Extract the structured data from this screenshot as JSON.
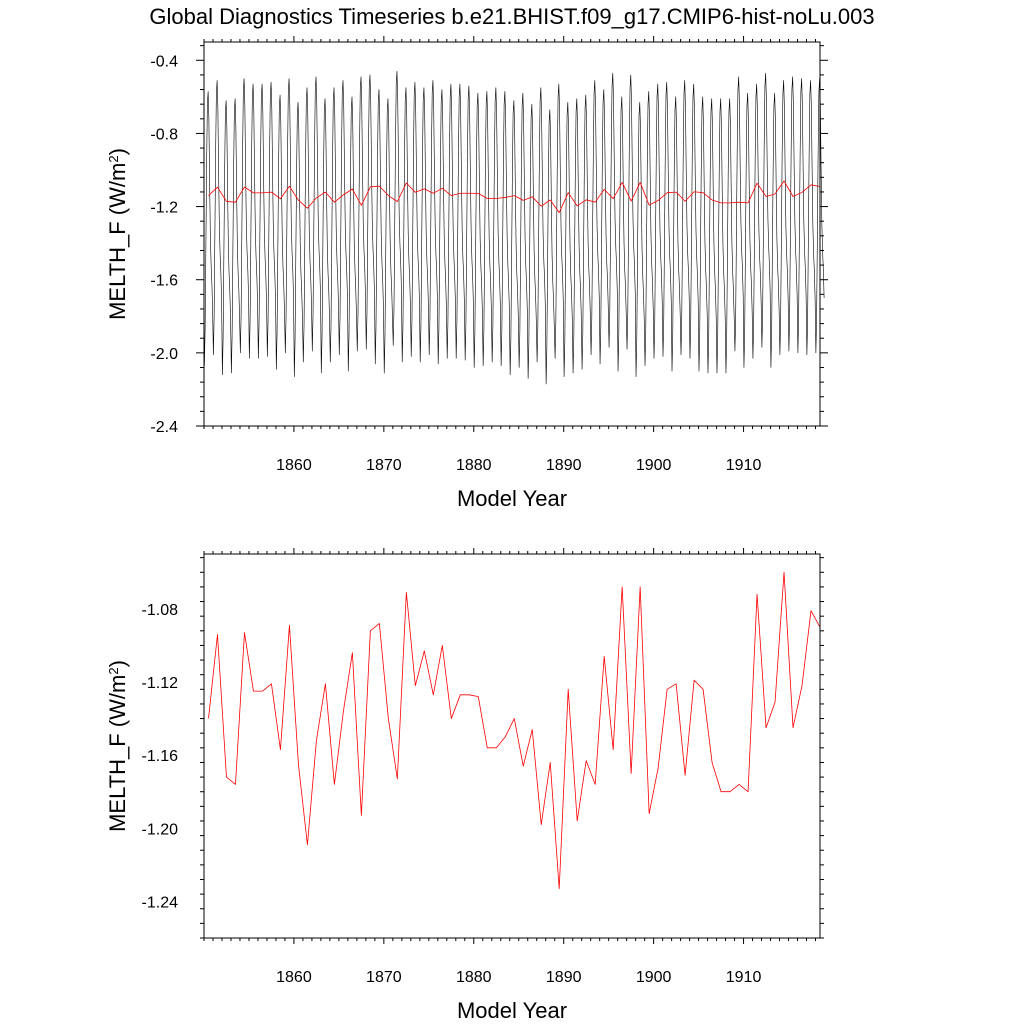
{
  "figure": {
    "title": "Global Diagnostics Timeseries b.e21.BHIST.f09_g17.CMIP6-hist-noLu.003"
  },
  "chart_data": [
    {
      "type": "line",
      "xlabel": "Model Year",
      "ylabel_main": "MELTH_F (W/m",
      "ylabel_sup": "2",
      "ylabel_end": ")",
      "xlim": [
        1850,
        1918.5
      ],
      "ylim": [
        -2.4,
        -0.3
      ],
      "xticks": [
        1860,
        1870,
        1880,
        1890,
        1900,
        1910
      ],
      "yticks": [
        -0.4,
        -0.8,
        -1.2,
        -1.6,
        -2.0,
        -2.4
      ],
      "ytick_labels": [
        "-0.4",
        "-0.8",
        "-1.2",
        "-1.6",
        "-2.0",
        "-2.4"
      ],
      "grid": false,
      "series": [
        {
          "color": "#000000",
          "monthly_climatology": [
            -2.05,
            -1.85,
            -1.4,
            -0.95,
            -0.62,
            -0.55,
            -0.7,
            -1.05,
            -1.35,
            -1.5,
            -1.6,
            -1.75
          ],
          "annual_perturbation": [
            -0.02,
            0.04,
            -0.07,
            -0.06,
            0.05,
            0.02,
            0.02,
            0.03,
            -0.04,
            0.05,
            -0.08,
            0.0,
            0.06,
            -0.06,
            0.0,
            0.04,
            -0.05,
            0.06,
            0.07,
            -0.01,
            -0.06,
            0.09,
            0.0,
            0.03,
            0.0,
            0.04,
            -0.01,
            0.02,
            0.02,
            0.01,
            -0.03,
            -0.02,
            0.0,
            -0.02,
            -0.07,
            -0.03,
            -0.09,
            0.0,
            -0.12,
            0.02,
            -0.08,
            -0.06,
            -0.04,
            0.04,
            -0.01,
            0.08,
            -0.05,
            0.07,
            -0.08,
            -0.02,
            0.02,
            0.03,
            -0.05,
            0.04,
            0.02,
            -0.05,
            -0.06,
            -0.06,
            -0.06,
            0.06,
            -0.03,
            0.02,
            0.08,
            -0.03,
            0.04,
            0.06,
            0.05,
            0.04,
            0.05
          ]
        },
        {
          "color": "#ff0000",
          "x": [
            1850.5,
            1851.5,
            1852.5,
            1853.5,
            1854.5,
            1855.5,
            1856.5,
            1857.5,
            1858.5,
            1859.5,
            1860.5,
            1861.5,
            1862.5,
            1863.5,
            1864.5,
            1865.5,
            1866.5,
            1867.5,
            1868.5,
            1869.5,
            1870.5,
            1871.5,
            1872.5,
            1873.5,
            1874.5,
            1875.5,
            1876.5,
            1877.5,
            1878.5,
            1879.5,
            1880.5,
            1881.5,
            1882.5,
            1883.5,
            1884.5,
            1885.5,
            1886.5,
            1887.5,
            1888.5,
            1889.5,
            1890.5,
            1891.5,
            1892.5,
            1893.5,
            1894.5,
            1895.5,
            1896.5,
            1897.5,
            1898.5,
            1899.5,
            1900.5,
            1901.5,
            1902.5,
            1903.5,
            1904.5,
            1905.5,
            1906.5,
            1907.5,
            1908.5,
            1909.5,
            1910.5,
            1911.5,
            1912.5,
            1913.5,
            1914.5,
            1915.5,
            1916.5,
            1917.5,
            1918.5
          ],
          "values": [
            -1.14,
            -1.094,
            -1.172,
            -1.176,
            -1.093,
            -1.125,
            -1.125,
            -1.121,
            -1.157,
            -1.089,
            -1.165,
            -1.209,
            -1.152,
            -1.121,
            -1.176,
            -1.136,
            -1.104,
            -1.193,
            -1.092,
            -1.088,
            -1.14,
            -1.173,
            -1.071,
            -1.122,
            -1.103,
            -1.127,
            -1.1,
            -1.14,
            -1.127,
            -1.127,
            -1.128,
            -1.156,
            -1.156,
            -1.15,
            -1.14,
            -1.166,
            -1.146,
            -1.198,
            -1.164,
            -1.233,
            -1.124,
            -1.196,
            -1.163,
            -1.176,
            -1.106,
            -1.157,
            -1.068,
            -1.17,
            -1.068,
            -1.192,
            -1.167,
            -1.124,
            -1.121,
            -1.171,
            -1.119,
            -1.124,
            -1.164,
            -1.18,
            -1.18,
            -1.176,
            -1.18,
            -1.072,
            -1.145,
            -1.131,
            -1.06,
            -1.145,
            -1.122,
            -1.081,
            -1.09
          ]
        }
      ]
    },
    {
      "type": "line",
      "xlabel": "Model Year",
      "ylabel_main": "MELTH_F (W/m",
      "ylabel_sup": "2",
      "ylabel_end": ")",
      "xlim": [
        1850,
        1918.5
      ],
      "ylim": [
        -1.26,
        -1.05
      ],
      "xticks": [
        1860,
        1870,
        1880,
        1890,
        1900,
        1910
      ],
      "yticks": [
        -1.08,
        -1.12,
        -1.16,
        -1.2,
        -1.24
      ],
      "ytick_labels": [
        "-1.08",
        "-1.12",
        "-1.16",
        "-1.20",
        "-1.24"
      ],
      "grid": false,
      "series": [
        {
          "color": "#ff0000",
          "x": [
            1850.5,
            1851.5,
            1852.5,
            1853.5,
            1854.5,
            1855.5,
            1856.5,
            1857.5,
            1858.5,
            1859.5,
            1860.5,
            1861.5,
            1862.5,
            1863.5,
            1864.5,
            1865.5,
            1866.5,
            1867.5,
            1868.5,
            1869.5,
            1870.5,
            1871.5,
            1872.5,
            1873.5,
            1874.5,
            1875.5,
            1876.5,
            1877.5,
            1878.5,
            1879.5,
            1880.5,
            1881.5,
            1882.5,
            1883.5,
            1884.5,
            1885.5,
            1886.5,
            1887.5,
            1888.5,
            1889.5,
            1890.5,
            1891.5,
            1892.5,
            1893.5,
            1894.5,
            1895.5,
            1896.5,
            1897.5,
            1898.5,
            1899.5,
            1900.5,
            1901.5,
            1902.5,
            1903.5,
            1904.5,
            1905.5,
            1906.5,
            1907.5,
            1908.5,
            1909.5,
            1910.5,
            1911.5,
            1912.5,
            1913.5,
            1914.5,
            1915.5,
            1916.5,
            1917.5,
            1918.5
          ],
          "values": [
            -1.14,
            -1.094,
            -1.172,
            -1.176,
            -1.093,
            -1.125,
            -1.125,
            -1.121,
            -1.157,
            -1.089,
            -1.165,
            -1.209,
            -1.152,
            -1.121,
            -1.176,
            -1.136,
            -1.104,
            -1.193,
            -1.092,
            -1.088,
            -1.14,
            -1.173,
            -1.071,
            -1.122,
            -1.103,
            -1.127,
            -1.1,
            -1.14,
            -1.127,
            -1.127,
            -1.128,
            -1.156,
            -1.156,
            -1.15,
            -1.14,
            -1.166,
            -1.146,
            -1.198,
            -1.164,
            -1.233,
            -1.124,
            -1.196,
            -1.163,
            -1.176,
            -1.106,
            -1.157,
            -1.068,
            -1.17,
            -1.068,
            -1.192,
            -1.167,
            -1.124,
            -1.121,
            -1.171,
            -1.119,
            -1.124,
            -1.164,
            -1.18,
            -1.18,
            -1.176,
            -1.18,
            -1.072,
            -1.145,
            -1.131,
            -1.06,
            -1.145,
            -1.122,
            -1.081,
            -1.09
          ]
        }
      ]
    }
  ]
}
